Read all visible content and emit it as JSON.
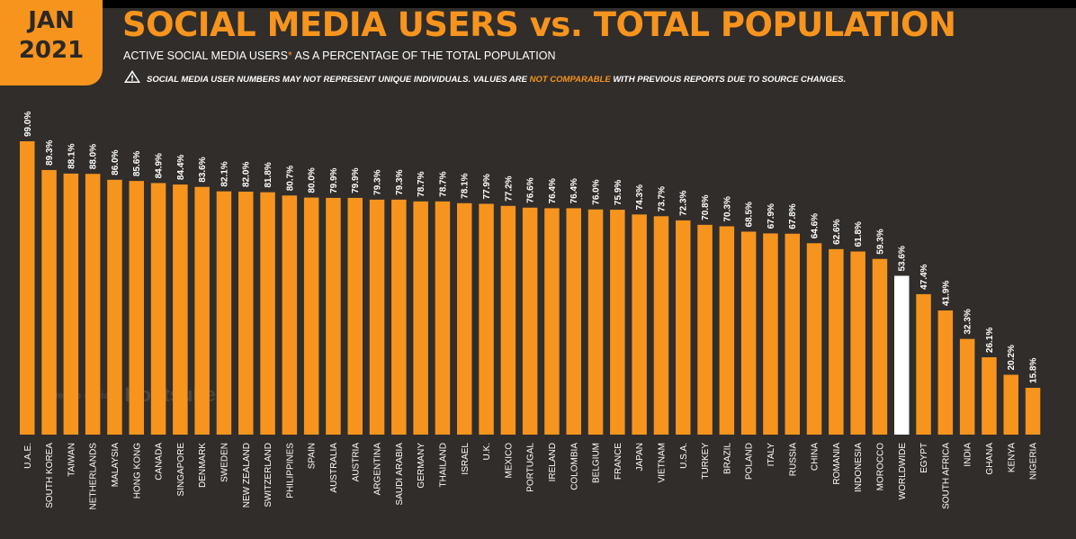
{
  "badge": {
    "month": "JAN",
    "year": "2021"
  },
  "header": {
    "title": "SOCIAL MEDIA USERS vs. TOTAL POPULATION",
    "subtitle": "ACTIVE SOCIAL MEDIA USERS",
    "subtitle_asterisk": "*",
    "subtitle_rest": " AS A PERCENTAGE OF THE TOTAL POPULATION",
    "note_pre": "SOCIAL MEDIA USER NUMBERS MAY NOT REPRESENT UNIQUE INDIVIDUALS. VALUES ARE ",
    "note_highlight": "NOT COMPARABLE",
    "note_post": " WITH PREVIOUS REPORTS DUE TO SOURCE CHANGES.",
    "note_icon": "warning-triangle-icon"
  },
  "watermark": {
    "left": "we are social",
    "right": "Hootsuite"
  },
  "colors": {
    "bar": "#f7941d",
    "highlight_bar": "#ffffff",
    "background": "#302d2b",
    "accent": "#f7941d"
  },
  "chart_data": {
    "type": "bar",
    "title": "SOCIAL MEDIA USERS vs. TOTAL POPULATION",
    "ylim": [
      0,
      100
    ],
    "highlight": "WORLDWIDE",
    "categories": [
      "U.A.E.",
      "SOUTH KOREA",
      "TAIWAN",
      "NETHERLANDS",
      "MALAYSIA",
      "HONG KONG",
      "CANADA",
      "SINGAPORE",
      "DENMARK",
      "SWEDEN",
      "NEW ZEALAND",
      "SWITZERLAND",
      "PHILIPPINES",
      "SPAIN",
      "AUSTRALIA",
      "AUSTRIA",
      "ARGENTINA",
      "SAUDI ARABIA",
      "GERMANY",
      "THAILAND",
      "ISRAEL",
      "U.K.",
      "MEXICO",
      "PORTUGAL",
      "IRELAND",
      "COLOMBIA",
      "BELGIUM",
      "FRANCE",
      "JAPAN",
      "VIETNAM",
      "U.S.A.",
      "TURKEY",
      "BRAZIL",
      "POLAND",
      "ITALY",
      "RUSSIA",
      "CHINA",
      "ROMANIA",
      "INDONESIA",
      "MOROCCO",
      "WORLDWIDE",
      "EGYPT",
      "SOUTH AFRICA",
      "INDIA",
      "GHANA",
      "KENYA",
      "NIGERIA"
    ],
    "values": [
      99.0,
      89.3,
      88.1,
      88.0,
      86.0,
      85.6,
      84.9,
      84.4,
      83.6,
      82.1,
      82.0,
      81.8,
      80.7,
      80.0,
      79.9,
      79.9,
      79.3,
      79.3,
      78.7,
      78.7,
      78.1,
      77.9,
      77.2,
      76.6,
      76.4,
      76.4,
      76.0,
      75.9,
      74.3,
      73.7,
      72.3,
      70.8,
      70.3,
      68.5,
      67.9,
      67.8,
      64.6,
      62.6,
      61.8,
      59.3,
      53.6,
      47.4,
      41.9,
      32.3,
      26.1,
      20.2,
      15.8
    ],
    "labels": [
      "99.0%",
      "89.3%",
      "88.1%",
      "88.0%",
      "86.0%",
      "85.6%",
      "84.9%",
      "84.4%",
      "83.6%",
      "82.1%",
      "82.0%",
      "81.8%",
      "80.7%",
      "80.0%",
      "79.9%",
      "79.9%",
      "79.3%",
      "79.3%",
      "78.7%",
      "78.7%",
      "78.1%",
      "77.9%",
      "77.2%",
      "76.6%",
      "76.4%",
      "76.4%",
      "76.0%",
      "75.9%",
      "74.3%",
      "73.7%",
      "72.3%",
      "70.8%",
      "70.3%",
      "68.5%",
      "67.9%",
      "67.8%",
      "64.6%",
      "62.6%",
      "61.8%",
      "59.3%",
      "53.6%",
      "47.4%",
      "41.9%",
      "32.3%",
      "26.1%",
      "20.2%",
      "15.8%"
    ]
  }
}
